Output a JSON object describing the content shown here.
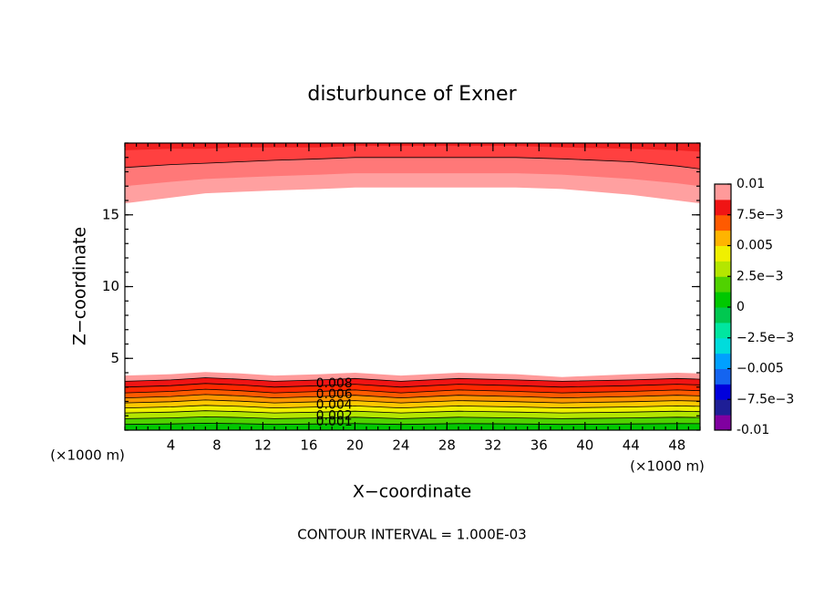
{
  "chart_data": {
    "type": "contour",
    "title": "disturbunce of Exner",
    "xlabel": "X−coordinate",
    "ylabel": "Z−coordinate",
    "x_unit": "(×1000 m)",
    "y_unit": "(×1000 m)",
    "footer": "CONTOUR INTERVAL = 1.000E-03",
    "xlim": [
      0,
      50
    ],
    "ylim": [
      0,
      20
    ],
    "xticks": [
      4,
      8,
      12,
      16,
      20,
      24,
      28,
      32,
      36,
      40,
      44,
      48
    ],
    "yticks": [
      5,
      10,
      15
    ],
    "x": [
      0,
      4,
      7,
      10,
      13,
      17,
      20,
      24,
      29,
      34,
      38,
      44,
      48,
      50
    ],
    "contours": [
      {
        "side": "lower",
        "level": 0.001,
        "label": true,
        "line": true,
        "fill": "#00c800",
        "z": [
          0.4,
          0.43,
          0.48,
          0.45,
          0.4,
          0.43,
          0.46,
          0.4,
          0.46,
          0.43,
          0.4,
          0.43,
          0.46,
          0.45
        ]
      },
      {
        "side": "lower",
        "level": 0.002,
        "label": true,
        "line": true,
        "fill": "#50d200",
        "z": [
          0.8,
          0.85,
          0.93,
          0.88,
          0.8,
          0.85,
          0.9,
          0.8,
          0.9,
          0.85,
          0.8,
          0.85,
          0.9,
          0.88
        ]
      },
      {
        "side": "lower",
        "level": 0.003,
        "label": false,
        "line": true,
        "fill": "#b4e600",
        "z": [
          1.2,
          1.26,
          1.35,
          1.29,
          1.2,
          1.26,
          1.32,
          1.2,
          1.32,
          1.26,
          1.2,
          1.26,
          1.32,
          1.29
        ]
      },
      {
        "side": "lower",
        "level": 0.004,
        "label": true,
        "line": true,
        "fill": "#f0f000",
        "z": [
          1.55,
          1.62,
          1.73,
          1.66,
          1.55,
          1.62,
          1.69,
          1.55,
          1.69,
          1.62,
          1.55,
          1.62,
          1.69,
          1.66
        ]
      },
      {
        "side": "lower",
        "level": 0.005,
        "label": false,
        "line": true,
        "fill": "#ffc800",
        "z": [
          1.9,
          1.98,
          2.1,
          2.02,
          1.9,
          1.98,
          2.06,
          1.9,
          2.06,
          1.98,
          1.9,
          1.98,
          2.06,
          2.02
        ]
      },
      {
        "side": "lower",
        "level": 0.006,
        "label": true,
        "line": true,
        "fill": "#ff9600",
        "z": [
          2.25,
          2.34,
          2.48,
          2.39,
          2.25,
          2.34,
          2.43,
          2.25,
          2.43,
          2.34,
          2.25,
          2.34,
          2.43,
          2.39
        ]
      },
      {
        "side": "lower",
        "level": 0.007,
        "label": false,
        "line": true,
        "fill": "#ff5a00",
        "z": [
          2.6,
          2.7,
          2.85,
          2.75,
          2.6,
          2.7,
          2.8,
          2.6,
          2.8,
          2.7,
          2.6,
          2.7,
          2.8,
          2.75
        ]
      },
      {
        "side": "lower",
        "level": 0.008,
        "label": true,
        "line": true,
        "fill": "#ff2800",
        "z": [
          3.0,
          3.1,
          3.25,
          3.15,
          3.0,
          3.1,
          3.2,
          3.0,
          3.2,
          3.1,
          3.0,
          3.1,
          3.2,
          3.15
        ]
      },
      {
        "side": "lower",
        "level": 0.009,
        "label": false,
        "line": true,
        "fill": "#f01414",
        "z": [
          3.4,
          3.5,
          3.65,
          3.55,
          3.4,
          3.5,
          3.6,
          3.4,
          3.6,
          3.5,
          3.4,
          3.5,
          3.6,
          3.55
        ]
      },
      {
        "side": "lower",
        "level": 0.01,
        "label": false,
        "line": false,
        "fill": "#ff9a9a",
        "z": [
          3.8,
          3.9,
          4.05,
          3.95,
          3.8,
          3.9,
          4.0,
          3.8,
          4.0,
          3.9,
          3.7,
          3.9,
          4.0,
          3.95
        ]
      },
      {
        "side": "upper",
        "level": 0.01,
        "label": false,
        "line": false,
        "fill": "#ffa0a0",
        "z": [
          15.8,
          16.2,
          16.5,
          16.6,
          16.7,
          16.8,
          16.9,
          16.9,
          16.9,
          16.9,
          16.8,
          16.4,
          16.0,
          15.8
        ]
      },
      {
        "side": "upper",
        "level": 0.0095,
        "label": false,
        "line": false,
        "fill": "#ff7878",
        "z": [
          17.0,
          17.3,
          17.5,
          17.6,
          17.7,
          17.8,
          17.9,
          17.9,
          17.9,
          17.9,
          17.8,
          17.5,
          17.2,
          17.0
        ]
      },
      {
        "side": "upper",
        "level": 0.009,
        "label": false,
        "line": true,
        "fill": "#ff4040",
        "z": [
          18.3,
          18.5,
          18.6,
          18.7,
          18.8,
          18.9,
          19.0,
          19.0,
          19.0,
          19.0,
          18.9,
          18.7,
          18.4,
          18.2
        ]
      },
      {
        "side": "upper",
        "level": 0.0085,
        "label": false,
        "line": false,
        "fill": "#f02020",
        "z": [
          19.5,
          19.6,
          19.6,
          19.7,
          19.7,
          19.7,
          19.8,
          19.8,
          19.8,
          19.8,
          19.7,
          19.6,
          19.5,
          19.4
        ]
      }
    ],
    "colorbar": {
      "lim": [
        -0.01,
        0.01
      ],
      "colors": [
        "#8000a0",
        "#1e1e96",
        "#0000dc",
        "#1464f0",
        "#00a0ff",
        "#00dcdc",
        "#00e6a0",
        "#00c850",
        "#00c800",
        "#50d200",
        "#b4e600",
        "#f0f000",
        "#ffb400",
        "#ff5a00",
        "#f01414",
        "#ff9a9a"
      ],
      "ticks": [
        -0.01,
        {
          "value": -0.0075,
          "label": "−7.5e−3"
        },
        {
          "value": -0.005,
          "label": "−0.005"
        },
        {
          "value": -0.0025,
          "label": "−2.5e−3"
        },
        0,
        {
          "value": 0.0025,
          "label": "2.5e−3"
        },
        0.005,
        {
          "value": 0.0075,
          "label": "7.5e−3"
        },
        0.01
      ]
    }
  }
}
